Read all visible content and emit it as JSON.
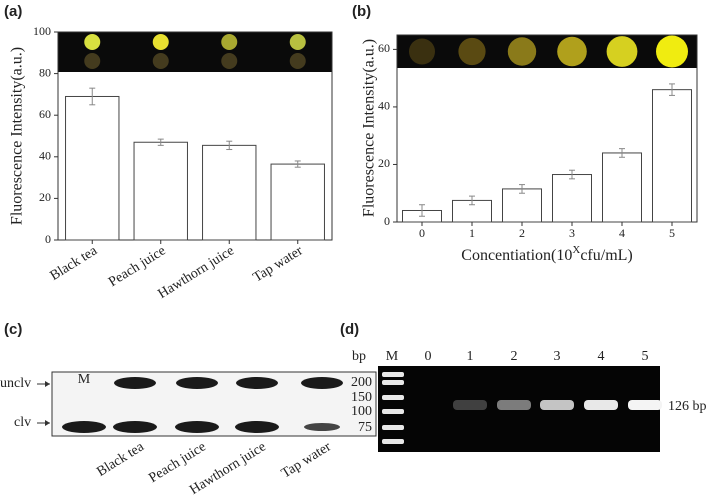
{
  "chart_data": [
    {
      "type": "bar",
      "panel": "(a)",
      "ylabel": "Fluorescence Intensity(a.u.)",
      "categories": [
        "Black tea",
        "Peach juice",
        "Hawthorn juice",
        "Tap water"
      ],
      "values": [
        69,
        47,
        45.5,
        36.5
      ],
      "errors": [
        4,
        1.5,
        2,
        1.5
      ],
      "ylim": [
        0,
        100
      ],
      "yticks": [
        0,
        20,
        40,
        60,
        80,
        100
      ],
      "color": "#ffffff"
    },
    {
      "type": "bar",
      "panel": "(b)",
      "ylabel": "Fluorescence Intensity(a.u.)",
      "xlabel": {
        "text": "Concentiation(10",
        "sup": "X",
        "tail": "cfu/mL)"
      },
      "categories": [
        "0",
        "1",
        "2",
        "3",
        "4",
        "5"
      ],
      "values": [
        4,
        7.5,
        11.5,
        16.5,
        24,
        46
      ],
      "errors": [
        2,
        1.5,
        1.5,
        1.5,
        1.5,
        2
      ],
      "ylim": [
        0,
        65
      ],
      "yticks": [
        0,
        20,
        40,
        60
      ],
      "color": "#ffffff"
    }
  ],
  "gel_c": {
    "panel": "(c)",
    "row_labels": [
      "unclv",
      "clv"
    ],
    "marker": "M",
    "lanes": [
      "Black tea",
      "Peach juice",
      "Hawthorn juice",
      "Tap water"
    ]
  },
  "gel_d": {
    "panel": "(d)",
    "unit": "bp",
    "lanes": [
      "M",
      "0",
      "1",
      "2",
      "3",
      "4",
      "5"
    ],
    "ladder": [
      "200",
      "150",
      "100",
      "75"
    ],
    "band_label": "126 bp"
  }
}
